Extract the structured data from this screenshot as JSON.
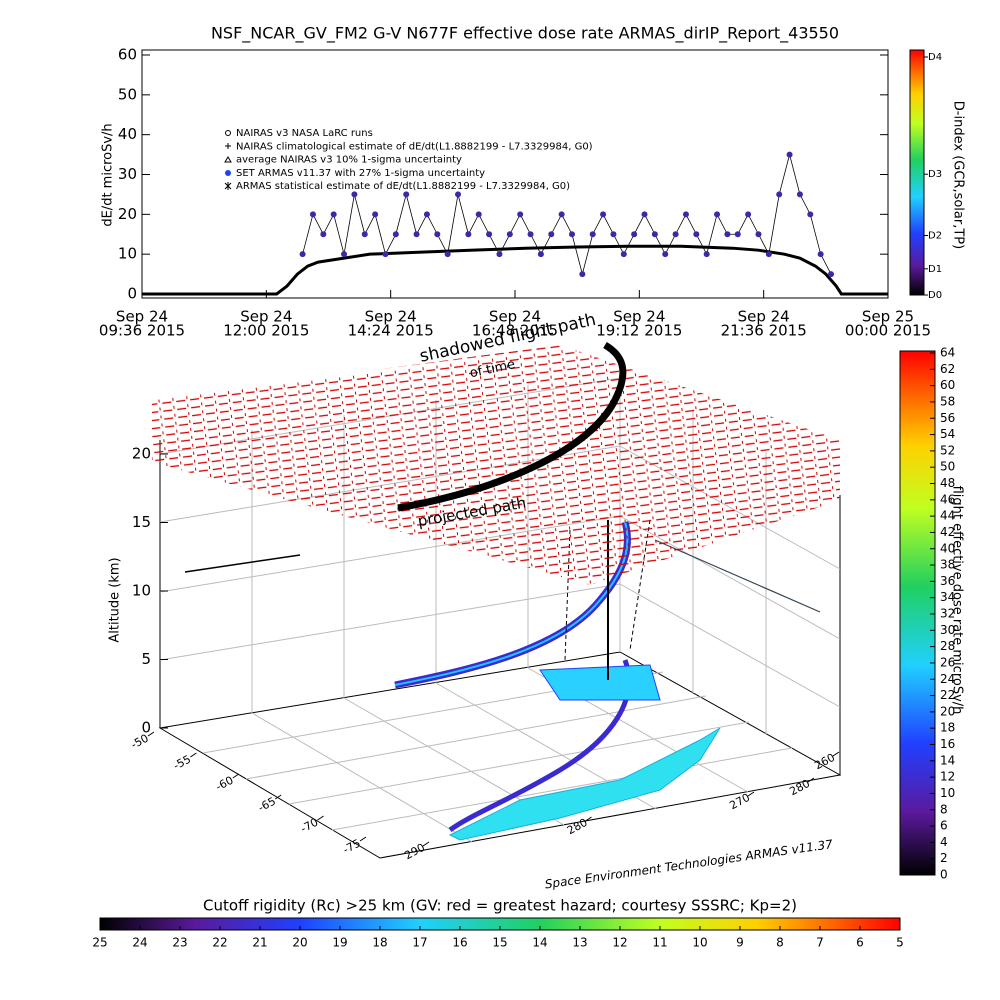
{
  "title": "NSF_NCAR_GV_FM2 G-V     N677F  effective dose rate ARMAS_dirIP_Report_43550",
  "chart_data": [
    {
      "type": "scatter",
      "ylabel": "dE/dt microSv/h",
      "xlim": [
        9.6,
        24
      ],
      "ylim": [
        0,
        60
      ],
      "yticks": [
        0,
        10,
        20,
        30,
        40,
        50,
        60
      ],
      "xticks": [
        {
          "value": 9.6,
          "label": [
            "Sep 24",
            "09:36 2015"
          ]
        },
        {
          "value": 12,
          "label": [
            "Sep 24",
            "12:00 2015"
          ]
        },
        {
          "value": 14.4,
          "label": [
            "Sep 24",
            "14:24 2015"
          ]
        },
        {
          "value": 16.8,
          "label": [
            "Sep 24",
            "16:48 2015"
          ]
        },
        {
          "value": 19.2,
          "label": [
            "Sep 24",
            "19:12 2015"
          ]
        },
        {
          "value": 21.6,
          "label": [
            "Sep 24",
            "21:36 2015"
          ]
        },
        {
          "value": 24,
          "label": [
            "Sep 25",
            "00:00 2015"
          ]
        }
      ],
      "legend": [
        "NAIRAS v3 NASA LaRC runs",
        "NAIRAS climatological estimate of dE/dt(L1.8882199 - L7.3329984, G0)",
        "average NAIRAS v3 10% 1-sigma uncertainty",
        "SET ARMAS v11.37 with 27% 1-sigma uncertainty",
        "ARMAS statistical estimate of dE/dt(L1.8882199 - L7.3329984, G0)"
      ],
      "series": [
        {
          "color": "#000000",
          "x": [
            9.6,
            10,
            10.5,
            11,
            11.5,
            12,
            12.2,
            12.4,
            12.6,
            12.8,
            13,
            13.5,
            14,
            15,
            16,
            17,
            18,
            19,
            20,
            21,
            21.5,
            22,
            22.3,
            22.6,
            22.8,
            23,
            23.1,
            23.3,
            23.6,
            24
          ],
          "values": [
            0,
            0,
            0,
            0,
            0,
            0,
            0,
            2,
            5,
            7,
            8,
            9,
            10,
            10.5,
            11,
            11.5,
            11.8,
            12,
            12,
            11.5,
            11,
            10,
            9,
            7,
            5,
            2,
            0,
            0,
            0,
            0
          ]
        },
        {
          "color": "#3b2aa8",
          "x": [
            12.7,
            12.9,
            13.1,
            13.3,
            13.5,
            13.7,
            13.9,
            14.1,
            14.3,
            14.5,
            14.7,
            14.9,
            15.1,
            15.3,
            15.5,
            15.7,
            15.9,
            16.1,
            16.3,
            16.5,
            16.7,
            16.9,
            17.1,
            17.3,
            17.5,
            17.7,
            17.9,
            18.1,
            18.3,
            18.5,
            18.7,
            18.9,
            19.1,
            19.3,
            19.5,
            19.7,
            19.9,
            20.1,
            20.3,
            20.5,
            20.7,
            20.9,
            21.1,
            21.3,
            21.5,
            21.7,
            21.9,
            22.1,
            22.3,
            22.5,
            22.7,
            22.9
          ],
          "values": [
            10,
            20,
            15,
            20,
            10,
            25,
            15,
            20,
            10,
            15,
            25,
            15,
            20,
            15,
            10,
            25,
            15,
            20,
            15,
            10,
            15,
            20,
            15,
            10,
            15,
            20,
            15,
            5,
            15,
            20,
            15,
            10,
            15,
            20,
            15,
            10,
            15,
            20,
            15,
            10,
            20,
            15,
            15,
            20,
            15,
            10,
            25,
            35,
            25,
            20,
            10,
            5
          ]
        }
      ],
      "colorbar": {
        "label": "D-index (GCR,solar,TP)",
        "lim": [
          0,
          4
        ],
        "ticks": [
          {
            "value": 0,
            "label": "D0"
          },
          {
            "value": 0.44,
            "label": "D1"
          },
          {
            "value": 1.0,
            "label": "D2"
          },
          {
            "value": 2.03,
            "label": "D3"
          },
          {
            "value": 4,
            "label": "D4"
          }
        ]
      }
    },
    {
      "type": "3d",
      "zlabel": "Altitude (km)",
      "zlim": [
        0,
        20
      ],
      "zticks": [
        0,
        5,
        10,
        15,
        20
      ],
      "ylim": [
        -50,
        -75
      ],
      "yticks": [
        -50,
        -55,
        -60,
        -65,
        -70,
        -75
      ],
      "xlim": [
        290,
        270
      ],
      "xticks": [
        290,
        280,
        270
      ],
      "x2lim": [
        280,
        260
      ],
      "x2ticks": [
        280,
        260
      ],
      "annotations": [
        "shadowed flight path",
        "of time",
        "projected path",
        "Space Environment Technologies ARMAS v11.37"
      ],
      "colorbar": {
        "label": "flight effective dose rate microSv/h",
        "lim": [
          0,
          64
        ],
        "ticks": [
          0,
          2,
          4,
          6,
          8,
          10,
          12,
          14,
          16,
          18,
          20,
          22,
          24,
          26,
          28,
          30,
          32,
          34,
          36,
          38,
          40,
          42,
          44,
          46,
          48,
          50,
          52,
          54,
          56,
          58,
          60,
          62,
          64
        ]
      },
      "colorbar2": {
        "title": "Cutoff rigidity (Rc) >25 km (GV: red = greatest hazard; courtesy SSSRC; Kp=2)",
        "lim": [
          25,
          5
        ],
        "ticks": [
          25,
          24,
          23,
          22,
          21,
          20,
          19,
          18,
          17,
          16,
          15,
          14,
          13,
          12,
          11,
          10,
          9,
          8,
          7,
          6,
          5
        ]
      }
    }
  ]
}
